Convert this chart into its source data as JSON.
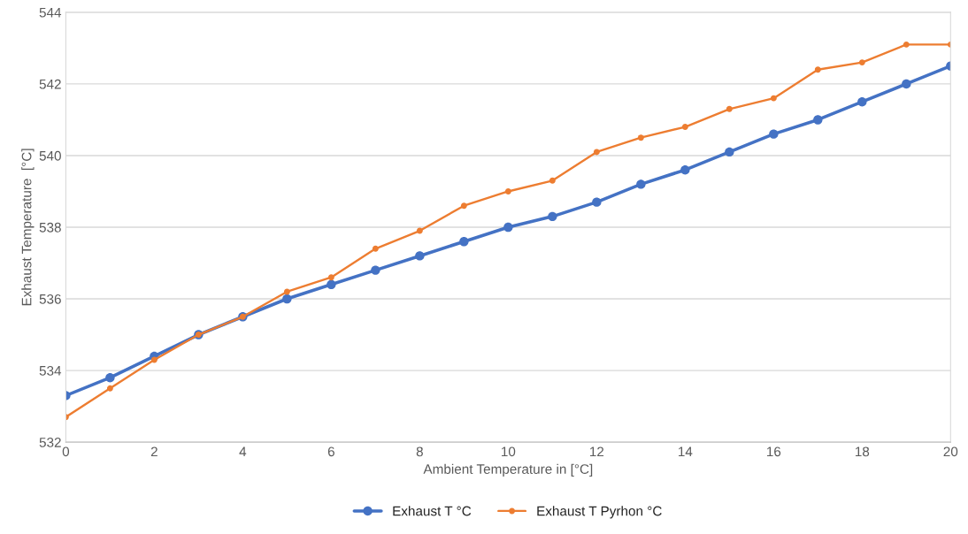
{
  "chart_data": {
    "type": "line",
    "xlabel": "Ambient Temperature in [°C]",
    "ylabel": "Exhaust Temperature  [°C]",
    "x": [
      0,
      1,
      2,
      3,
      4,
      5,
      6,
      7,
      8,
      9,
      10,
      11,
      12,
      13,
      14,
      15,
      16,
      17,
      18,
      19,
      20
    ],
    "series": [
      {
        "name": "Exhaust T °C",
        "color": "#4472c4",
        "values": [
          533.3,
          533.8,
          534.4,
          535.0,
          535.5,
          536.0,
          536.4,
          536.8,
          537.2,
          537.6,
          538.0,
          538.3,
          538.7,
          539.2,
          539.6,
          540.1,
          540.6,
          541.0,
          541.5,
          542.0,
          542.5
        ]
      },
      {
        "name": "Exhaust T Pyrhon °C",
        "color": "#ed7d31",
        "values": [
          532.7,
          533.5,
          534.3,
          535.0,
          535.5,
          536.2,
          536.6,
          537.4,
          537.9,
          538.6,
          539.0,
          539.3,
          540.1,
          540.5,
          540.8,
          541.3,
          541.6,
          542.4,
          542.6,
          543.1,
          543.1
        ]
      }
    ],
    "xlim": [
      0,
      20
    ],
    "xticks": [
      0,
      2,
      4,
      6,
      8,
      10,
      12,
      14,
      16,
      18,
      20
    ],
    "ylim": [
      532,
      544
    ],
    "yticks": [
      532,
      534,
      536,
      538,
      540,
      542,
      544
    ],
    "grid": "y",
    "legend": "bottom",
    "marker": "circle",
    "line_style": "solid"
  }
}
